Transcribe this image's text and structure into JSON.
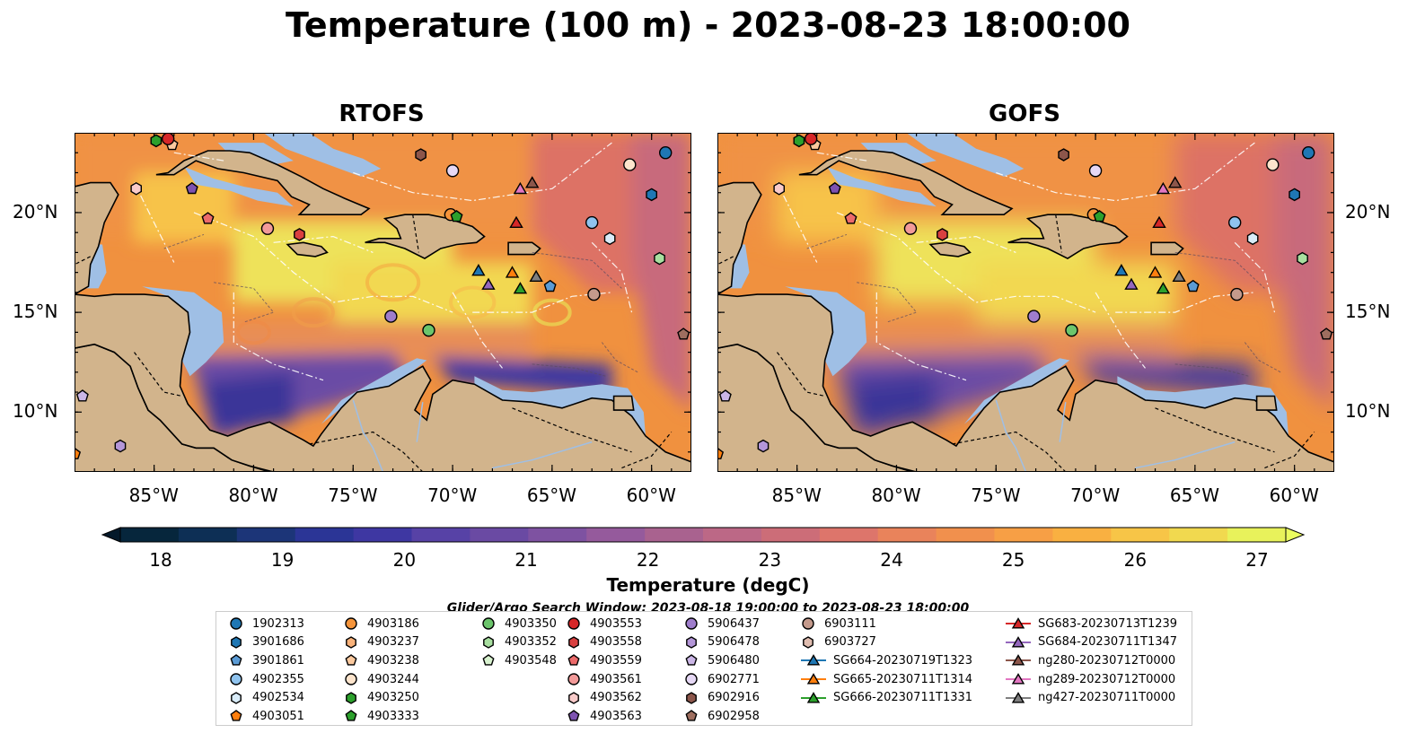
{
  "title": "Temperature (100 m) - 2023-08-23 18:00:00",
  "panels": [
    {
      "id": "rtofs",
      "title": "RTOFS"
    },
    {
      "id": "gofs",
      "title": "GOFS"
    }
  ],
  "axes": {
    "lon_ticks": [
      "85°W",
      "80°W",
      "75°W",
      "70°W",
      "65°W",
      "60°W"
    ],
    "lat_ticks": [
      "20°N",
      "15°N",
      "10°N"
    ],
    "lon_range": [
      -89,
      -58
    ],
    "lat_range": [
      7,
      24
    ]
  },
  "colorbar": {
    "label": "Temperature (degC)",
    "min": 18,
    "max": 27,
    "tick_labels": [
      "18",
      "19",
      "20",
      "21",
      "22",
      "23",
      "24",
      "25",
      "26",
      "27"
    ],
    "colormap": "thermal",
    "extend": "both"
  },
  "colors": {
    "land": "#d2b48c",
    "shelf": "#9fbfe5",
    "deep_cold": "#06263c",
    "warm": "#f6a337",
    "hot": "#f0e35c"
  },
  "search_window": "Glider/Argo Search Window: 2023-08-18 19:00:00 to 2023-08-23 18:00:00",
  "legend": [
    {
      "label": "1902313",
      "marker": "circle",
      "color": "#1f77b4"
    },
    {
      "label": "3901686",
      "marker": "hexagon",
      "color": "#1f77b4"
    },
    {
      "label": "3901861",
      "marker": "pentagon",
      "color": "#5b9bd5"
    },
    {
      "label": "4902355",
      "marker": "circle",
      "color": "#8fc3ee"
    },
    {
      "label": "4902534",
      "marker": "hexagon",
      "color": "#d9ecf9"
    },
    {
      "label": "4903051",
      "marker": "pentagon",
      "color": "#ff7f0e"
    },
    {
      "label": "4903186",
      "marker": "circle",
      "color": "#f5943a"
    },
    {
      "label": "4903237",
      "marker": "hexagon",
      "color": "#f9b27a"
    },
    {
      "label": "4903238",
      "marker": "pentagon",
      "color": "#fbc99e"
    },
    {
      "label": "4903244",
      "marker": "circle",
      "color": "#fde4cc"
    },
    {
      "label": "4903250",
      "marker": "hexagon",
      "color": "#2ca02c"
    },
    {
      "label": "4903333",
      "marker": "pentagon",
      "color": "#2ca02c"
    },
    {
      "label": "4903350",
      "marker": "circle",
      "color": "#6cc56c"
    },
    {
      "label": "4903352",
      "marker": "hexagon",
      "color": "#a8dfa0"
    },
    {
      "label": "4903548",
      "marker": "pentagon",
      "color": "#d8f2cf"
    },
    {
      "label": "4903553",
      "marker": "circle",
      "color": "#d62728"
    },
    {
      "label": "4903558",
      "marker": "hexagon",
      "color": "#d94040"
    },
    {
      "label": "4903559",
      "marker": "pentagon",
      "color": "#ec6a6a"
    },
    {
      "label": "4903561",
      "marker": "circle",
      "color": "#f29a99"
    },
    {
      "label": "4903562",
      "marker": "hexagon",
      "color": "#f9cbca"
    },
    {
      "label": "4903563",
      "marker": "pentagon",
      "color": "#7d52b0"
    },
    {
      "label": "5906437",
      "marker": "circle",
      "color": "#9f7dcc"
    },
    {
      "label": "5906478",
      "marker": "hexagon",
      "color": "#b496d8"
    },
    {
      "label": "5906480",
      "marker": "pentagon",
      "color": "#cbb6e6"
    },
    {
      "label": "6902771",
      "marker": "circle",
      "color": "#e6d8f5"
    },
    {
      "label": "6902916",
      "marker": "hexagon",
      "color": "#8c564b"
    },
    {
      "label": "6902958",
      "marker": "pentagon",
      "color": "#9e6e5f"
    },
    {
      "label": "6903111",
      "marker": "circle",
      "color": "#c49a8c"
    },
    {
      "label": "6903727",
      "marker": "hexagon",
      "color": "#e0bdb0"
    },
    {
      "label": "SG664-20230719T1323",
      "marker": "triangle-line",
      "color": "#1f77b4"
    },
    {
      "label": "SG665-20230711T1314",
      "marker": "triangle-line",
      "color": "#ff7f0e"
    },
    {
      "label": "SG666-20230711T1331",
      "marker": "triangle-line",
      "color": "#2ca02c"
    },
    {
      "label": "SG683-20230713T1239",
      "marker": "triangle-line",
      "color": "#d62728"
    },
    {
      "label": "SG684-20230711T1347",
      "marker": "triangle-line",
      "color": "#9467bd"
    },
    {
      "label": "ng280-20230712T0000",
      "marker": "triangle-line",
      "color": "#8c564b"
    },
    {
      "label": "ng289-20230712T0000",
      "marker": "triangle-line",
      "color": "#e377c2"
    },
    {
      "label": "ng427-20230711T0000",
      "marker": "triangle-line",
      "color": "#7f7f7f"
    }
  ],
  "stations": [
    {
      "id": "1902313",
      "lon": -59.3,
      "lat": 23.0
    },
    {
      "id": "3901686",
      "lon": -60.0,
      "lat": 20.9
    },
    {
      "id": "4902355",
      "lon": -63.0,
      "lat": 19.5
    },
    {
      "id": "4902534",
      "lon": -62.1,
      "lat": 18.7
    },
    {
      "id": "4903244",
      "lon": -61.1,
      "lat": 22.4
    },
    {
      "id": "4903352",
      "lon": -59.6,
      "lat": 17.7
    },
    {
      "id": "6903111",
      "lon": -62.9,
      "lat": 15.9
    },
    {
      "id": "6902958",
      "lon": -58.4,
      "lat": 13.9
    },
    {
      "id": "3901861",
      "lon": -65.1,
      "lat": 16.3
    },
    {
      "id": "6902771",
      "lon": -70.0,
      "lat": 22.1
    },
    {
      "id": "6902916",
      "lon": -71.6,
      "lat": 22.9
    },
    {
      "id": "4903186",
      "lon": -70.1,
      "lat": 19.9
    },
    {
      "id": "4903333",
      "lon": -69.8,
      "lat": 19.8
    },
    {
      "id": "4903350",
      "lon": -71.2,
      "lat": 14.1
    },
    {
      "id": "5906437",
      "lon": -73.1,
      "lat": 14.8
    },
    {
      "id": "4903561",
      "lon": -79.3,
      "lat": 19.2
    },
    {
      "id": "4903558",
      "lon": -77.7,
      "lat": 18.9
    },
    {
      "id": "4903559",
      "lon": -82.3,
      "lat": 19.7
    },
    {
      "id": "4903562",
      "lon": -85.9,
      "lat": 21.2
    },
    {
      "id": "4903563",
      "lon": -83.1,
      "lat": 21.2
    },
    {
      "id": "4903238",
      "lon": -84.1,
      "lat": 23.4
    },
    {
      "id": "4903250",
      "lon": -84.9,
      "lat": 23.6
    },
    {
      "id": "4903553",
      "lon": -84.3,
      "lat": 23.7
    },
    {
      "id": "5906478",
      "lon": -86.7,
      "lat": 8.3
    },
    {
      "id": "5906480",
      "lon": -88.6,
      "lat": 10.8
    },
    {
      "id": "4903051",
      "lon": -89.0,
      "lat": 7.9
    },
    {
      "id": "SG664-20230719T1323",
      "lon": -68.7,
      "lat": 17.1
    },
    {
      "id": "SG665-20230711T1314",
      "lon": -67.0,
      "lat": 17.0
    },
    {
      "id": "SG666-20230711T1331",
      "lon": -66.6,
      "lat": 16.2
    },
    {
      "id": "SG683-20230713T1239",
      "lon": -66.8,
      "lat": 19.5
    },
    {
      "id": "SG684-20230711T1347",
      "lon": -68.2,
      "lat": 16.4
    },
    {
      "id": "ng280-20230712T0000",
      "lon": -66.0,
      "lat": 21.5
    },
    {
      "id": "ng289-20230712T0000",
      "lon": -66.6,
      "lat": 21.2
    },
    {
      "id": "ng427-20230711T0000",
      "lon": -65.8,
      "lat": 16.8
    }
  ]
}
